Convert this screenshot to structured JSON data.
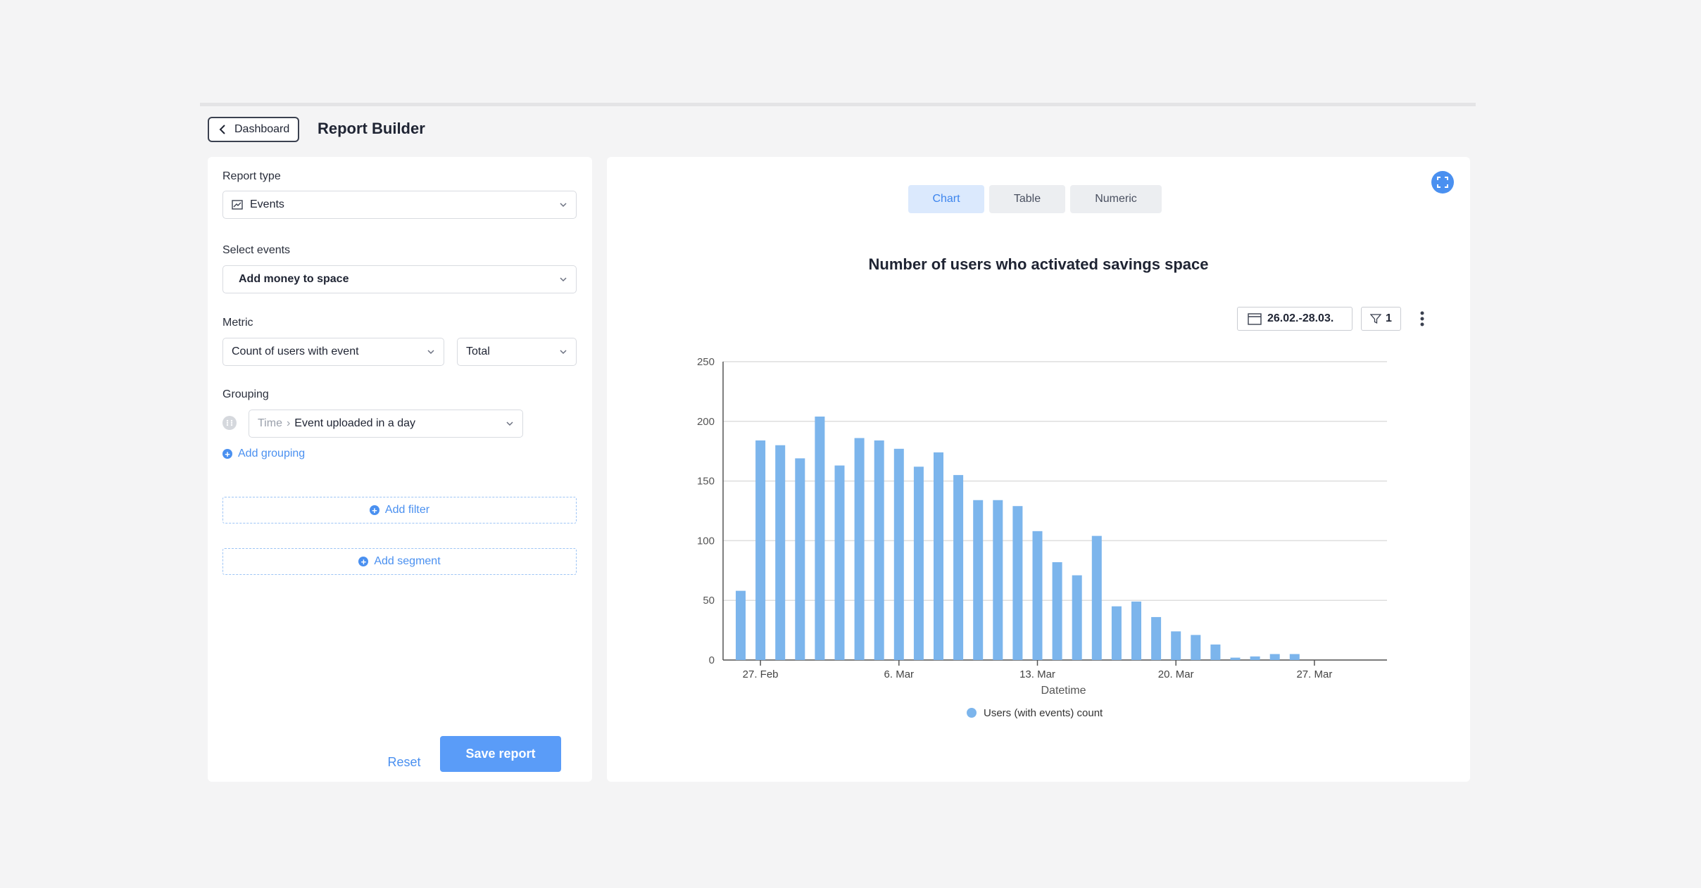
{
  "header": {
    "back_label": "Dashboard",
    "title": "Report Builder"
  },
  "left": {
    "report_type_label": "Report type",
    "report_type_value": "Events",
    "select_events_label": "Select events",
    "select_events_value": "Add money to space",
    "metric_label": "Metric",
    "metric_value": "Count of users with event",
    "metric_agg_value": "Total",
    "grouping_label": "Grouping",
    "grouping_prefix": "Time",
    "grouping_value": "Event uploaded in a day",
    "add_grouping": "Add grouping",
    "add_filter": "Add filter",
    "add_segment": "Add segment",
    "reset": "Reset",
    "save": "Save report"
  },
  "right": {
    "tabs": [
      {
        "label": "Chart",
        "active": true
      },
      {
        "label": "Table",
        "active": false
      },
      {
        "label": "Numeric",
        "active": false
      }
    ],
    "date_range": "26.02.-28.03.",
    "filter_count": "1"
  },
  "colors": {
    "accent": "#4a90f0",
    "bar": "#7cb5ec"
  },
  "chart_data": {
    "type": "bar",
    "title": "Number of users who activated savings space",
    "xlabel": "Datetime",
    "ylabel": "",
    "ylim": [
      0,
      250
    ],
    "yticks": [
      0,
      50,
      100,
      150,
      200,
      250
    ],
    "x_tick_labels": [
      {
        "label": "27. Feb",
        "index": 1
      },
      {
        "label": "6. Mar",
        "index": 8
      },
      {
        "label": "13. Mar",
        "index": 15
      },
      {
        "label": "20. Mar",
        "index": 22
      },
      {
        "label": "27. Mar",
        "index": 29
      }
    ],
    "categories": [
      "26. Feb",
      "27. Feb",
      "28. Feb",
      "1. Mar",
      "2. Mar",
      "3. Mar",
      "4. Mar",
      "5. Mar",
      "6. Mar",
      "7. Mar",
      "8. Mar",
      "9. Mar",
      "10. Mar",
      "11. Mar",
      "12. Mar",
      "13. Mar",
      "14. Mar",
      "15. Mar",
      "16. Mar",
      "17. Mar",
      "18. Mar",
      "19. Mar",
      "20. Mar",
      "21. Mar",
      "22. Mar",
      "23. Mar",
      "24. Mar",
      "25. Mar",
      "26. Mar",
      "27. Mar",
      "28. Mar"
    ],
    "series": [
      {
        "name": "Users (with events) count",
        "values": [
          58,
          184,
          180,
          169,
          204,
          163,
          186,
          184,
          177,
          162,
          174,
          155,
          134,
          134,
          129,
          108,
          82,
          71,
          104,
          45,
          49,
          36,
          24,
          21,
          13,
          2,
          3,
          5,
          5,
          0,
          0
        ]
      }
    ],
    "legend": "bottom",
    "grid": true
  }
}
